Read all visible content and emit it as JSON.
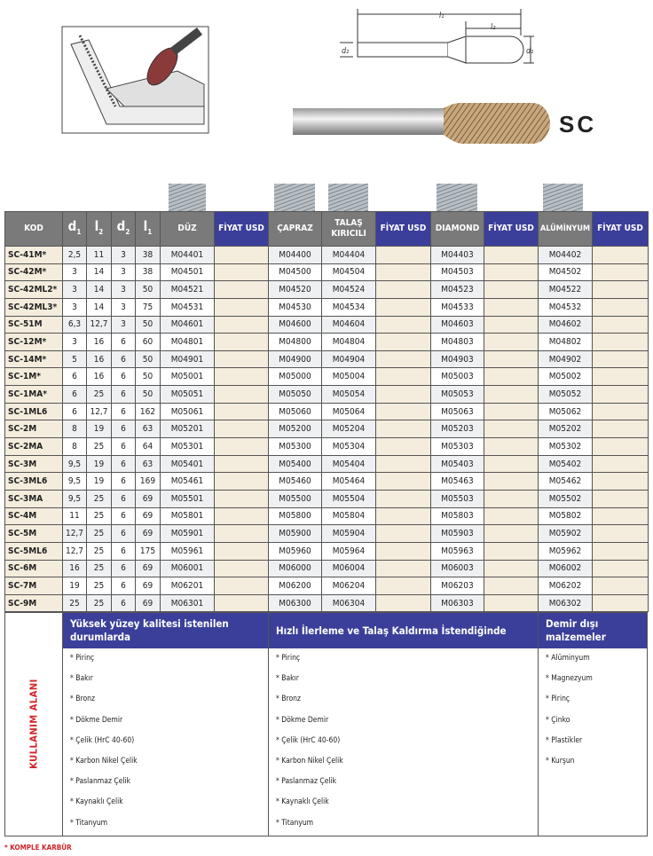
{
  "product_code": "SC",
  "drawing_labels": {
    "l1": "l₁",
    "l2": "l₂",
    "d1": "d₁",
    "d2": "d₂"
  },
  "headers": {
    "kod": "KOD",
    "d1": "d",
    "l2": "l",
    "d2": "d",
    "l1": "l",
    "duz": "DÜZ",
    "fiyat1": "FİYAT USD",
    "capraz": "ÇAPRAZ",
    "talas": "TALAŞ KIRICILI",
    "fiyat2": "FİYAT USD",
    "diamond": "DIAMOND",
    "fiyat3": "FİYAT USD",
    "aluminyum": "ALÜMİNYUM",
    "fiyat4": "FİYAT USD"
  },
  "rows": [
    [
      "SC-41M*",
      "2,5",
      "11",
      "3",
      "38",
      "M04401",
      "M04400",
      "M04404",
      "M04403",
      "M04402"
    ],
    [
      "SC-42M*",
      "3",
      "14",
      "3",
      "38",
      "M04501",
      "M04500",
      "M04504",
      "M04503",
      "M04502"
    ],
    [
      "SC-42ML2*",
      "3",
      "14",
      "3",
      "50",
      "M04521",
      "M04520",
      "M04524",
      "M04523",
      "M04522"
    ],
    [
      "SC-42ML3*",
      "3",
      "14",
      "3",
      "75",
      "M04531",
      "M04530",
      "M04534",
      "M04533",
      "M04532"
    ],
    [
      "SC-51M",
      "6,3",
      "12,7",
      "3",
      "50",
      "M04601",
      "M04600",
      "M04604",
      "M04603",
      "M04602"
    ],
    [
      "SC-12M*",
      "3",
      "16",
      "6",
      "60",
      "M04801",
      "M04800",
      "M04804",
      "M04803",
      "M04802"
    ],
    [
      "SC-14M*",
      "5",
      "16",
      "6",
      "50",
      "M04901",
      "M04900",
      "M04904",
      "M04903",
      "M04902"
    ],
    [
      "SC-1M*",
      "6",
      "16",
      "6",
      "50",
      "M05001",
      "M05000",
      "M05004",
      "M05003",
      "M05002"
    ],
    [
      "SC-1MA*",
      "6",
      "25",
      "6",
      "50",
      "M05051",
      "M05050",
      "M05054",
      "M05053",
      "M05052"
    ],
    [
      "SC-1ML6",
      "6",
      "12,7",
      "6",
      "162",
      "M05061",
      "M05060",
      "M05064",
      "M05063",
      "M05062"
    ],
    [
      "SC-2M",
      "8",
      "19",
      "6",
      "63",
      "M05201",
      "M05200",
      "M05204",
      "M05203",
      "M05202"
    ],
    [
      "SC-2MA",
      "8",
      "25",
      "6",
      "64",
      "M05301",
      "M05300",
      "M05304",
      "M05303",
      "M05302"
    ],
    [
      "SC-3M",
      "9,5",
      "19",
      "6",
      "63",
      "M05401",
      "M05400",
      "M05404",
      "M05403",
      "M05402"
    ],
    [
      "SC-3ML6",
      "9,5",
      "19",
      "6",
      "169",
      "M05461",
      "M05460",
      "M05464",
      "M05463",
      "M05462"
    ],
    [
      "SC-3MA",
      "9,5",
      "25",
      "6",
      "69",
      "M05501",
      "M05500",
      "M05504",
      "M05503",
      "M05502"
    ],
    [
      "SC-4M",
      "11",
      "25",
      "6",
      "69",
      "M05801",
      "M05800",
      "M05804",
      "M05803",
      "M05802"
    ],
    [
      "SC-5M",
      "12,7",
      "25",
      "6",
      "69",
      "M05901",
      "M05900",
      "M05904",
      "M05903",
      "M05902"
    ],
    [
      "SC-5ML6",
      "12,7",
      "25",
      "6",
      "175",
      "M05961",
      "M05960",
      "M05964",
      "M05963",
      "M05962"
    ],
    [
      "SC-6M",
      "16",
      "25",
      "6",
      "69",
      "M06001",
      "M06000",
      "M06004",
      "M06003",
      "M06002"
    ],
    [
      "SC-7M",
      "19",
      "25",
      "6",
      "69",
      "M06201",
      "M06200",
      "M06204",
      "M06203",
      "M06202"
    ],
    [
      "SC-9M",
      "25",
      "25",
      "6",
      "69",
      "M06301",
      "M06300",
      "M06304",
      "M06303",
      "M06302"
    ]
  ],
  "usage": {
    "label": "KULLANIM ALANI",
    "sections": [
      {
        "title": "Yüksek yüzey kalitesi istenilen durumlarda",
        "items": [
          "* Pirinç",
          "* Bakır",
          "* Bronz",
          "* Dökme Demir",
          "* Çelik (HrC 40-60)",
          "* Karbon Nikel Çelik",
          "* Paslanmaz Çelik",
          "* Kaynaklı Çelik",
          "* Titanyum"
        ]
      },
      {
        "title": "Hızlı İlerleme ve Talaş Kaldırma İstendiğinde",
        "items": [
          "* Pirinç",
          "* Bakır",
          "* Bronz",
          "* Dökme Demir",
          "* Çelik (HrC 40-60)",
          "* Karbon Nikel Çelik",
          "* Paslanmaz Çelik",
          "* Kaynaklı Çelik",
          "* Titanyum"
        ]
      },
      {
        "title": "Demir dışı malzemeler",
        "items": [
          "* Alüminyum",
          "* Magnezyum",
          "* Pirinç",
          "* Çinko",
          "* Plastikler",
          "* Kurşun"
        ]
      }
    ]
  },
  "footnote": "* KOMPLE KARBÜR",
  "colors": {
    "header_gray": "#7a7a7a",
    "header_blue": "#3b3f9a",
    "beige": "#f4ecdc",
    "red": "#d2232a"
  }
}
